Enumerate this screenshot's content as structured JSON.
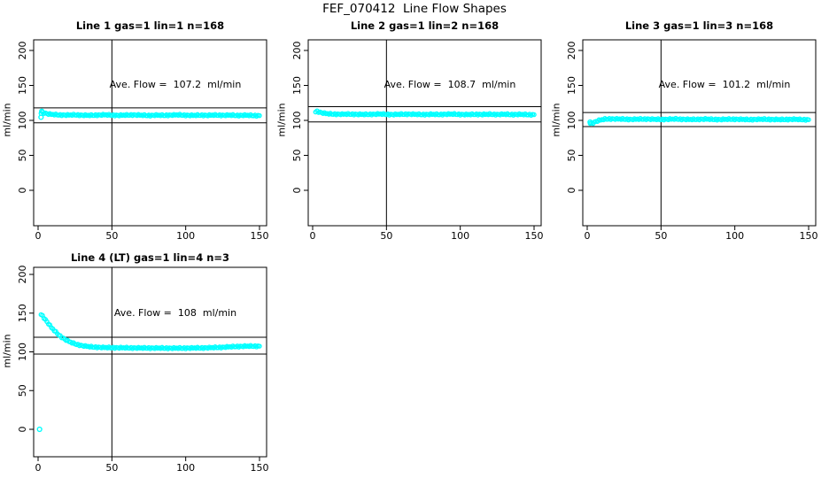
{
  "page": {
    "title": "FEF_070412  Line Flow Shapes"
  },
  "style": {
    "point_color": "#00FFFF",
    "axis_color": "#000000",
    "background": "#FFFFFF"
  },
  "axes": {
    "y_label": "ml/min",
    "x_ticks": [
      0,
      50,
      100,
      150
    ],
    "y_ticks": [
      0,
      50,
      100,
      150,
      200
    ]
  },
  "chart_data": [
    {
      "type": "scatter",
      "title": "Line 1 gas=1 lin=1 n=168",
      "annotation": "Ave. Flow =  107.2  ml/min",
      "ave_flow_ml_min": 107.2,
      "ylabel": "ml/min",
      "xlim": [
        0,
        155
      ],
      "ylim": [
        0,
        200
      ],
      "marker_vline_x": 50,
      "ref_lines_y": [
        117.9,
        96.5
      ],
      "points": [
        [
          2,
          110.5
        ],
        [
          3,
          111.5
        ],
        [
          5,
          110.2
        ],
        [
          7,
          109.2
        ],
        [
          9,
          108.6
        ],
        [
          12,
          108.1
        ],
        [
          15,
          107.8
        ],
        [
          20,
          107.6
        ],
        [
          25,
          107.9
        ],
        [
          30,
          107.4
        ],
        [
          35,
          107.2
        ],
        [
          40,
          107.6
        ],
        [
          45,
          108.0
        ],
        [
          50,
          107.5
        ],
        [
          55,
          107.2
        ],
        [
          60,
          107.6
        ],
        [
          65,
          107.9
        ],
        [
          70,
          107.4
        ],
        [
          75,
          107.1
        ],
        [
          80,
          107.5
        ],
        [
          85,
          107.2
        ],
        [
          90,
          107.6
        ],
        [
          95,
          107.9
        ],
        [
          100,
          107.4
        ],
        [
          105,
          107.1
        ],
        [
          110,
          107.5
        ],
        [
          115,
          107.2
        ],
        [
          120,
          107.6
        ],
        [
          125,
          107.3
        ],
        [
          130,
          107.5
        ],
        [
          135,
          107.1
        ],
        [
          140,
          107.4
        ],
        [
          145,
          107.0
        ],
        [
          150,
          106.8
        ]
      ],
      "outliers": [
        [
          2,
          104.5
        ],
        [
          2.5,
          113
        ]
      ]
    },
    {
      "type": "scatter",
      "title": "Line 2 gas=1 lin=2 n=168",
      "annotation": "Ave. Flow =  108.7  ml/min",
      "ave_flow_ml_min": 108.7,
      "ylabel": "ml/min",
      "xlim": [
        0,
        155
      ],
      "ylim": [
        0,
        200
      ],
      "marker_vline_x": 50,
      "ref_lines_y": [
        119.6,
        97.8
      ],
      "points": [
        [
          2,
          112.5
        ],
        [
          3,
          113.0
        ],
        [
          5,
          111.6
        ],
        [
          7,
          110.6
        ],
        [
          9,
          109.8
        ],
        [
          12,
          109.2
        ],
        [
          15,
          109.0
        ],
        [
          20,
          108.8
        ],
        [
          25,
          109.0
        ],
        [
          30,
          108.7
        ],
        [
          35,
          108.5
        ],
        [
          40,
          108.8
        ],
        [
          45,
          109.1
        ],
        [
          50,
          108.7
        ],
        [
          55,
          108.4
        ],
        [
          60,
          108.8
        ],
        [
          65,
          109.0
        ],
        [
          70,
          108.6
        ],
        [
          75,
          108.4
        ],
        [
          80,
          108.7
        ],
        [
          85,
          108.5
        ],
        [
          90,
          108.8
        ],
        [
          95,
          109.0
        ],
        [
          100,
          108.6
        ],
        [
          105,
          108.3
        ],
        [
          110,
          108.7
        ],
        [
          115,
          108.5
        ],
        [
          120,
          108.8
        ],
        [
          125,
          108.5
        ],
        [
          130,
          108.7
        ],
        [
          135,
          108.4
        ],
        [
          140,
          108.6
        ],
        [
          145,
          108.3
        ],
        [
          150,
          108.2
        ]
      ],
      "outliers": []
    },
    {
      "type": "scatter",
      "title": "Line 3 gas=1 lin=3 n=168",
      "annotation": "Ave. Flow =  101.2  ml/min",
      "ave_flow_ml_min": 101.2,
      "ylabel": "ml/min",
      "xlim": [
        0,
        155
      ],
      "ylim": [
        0,
        200
      ],
      "marker_vline_x": 50,
      "ref_lines_y": [
        111.3,
        91.1
      ],
      "points": [
        [
          2,
          96.0
        ],
        [
          3,
          95.5
        ],
        [
          4,
          96.5
        ],
        [
          5,
          97.5
        ],
        [
          6,
          98.5
        ],
        [
          8,
          100.0
        ],
        [
          10,
          101.0
        ],
        [
          12,
          101.8
        ],
        [
          15,
          102.2
        ],
        [
          20,
          102.0
        ],
        [
          25,
          101.8
        ],
        [
          30,
          101.5
        ],
        [
          35,
          101.8
        ],
        [
          40,
          102.0
        ],
        [
          45,
          101.6
        ],
        [
          50,
          101.4
        ],
        [
          55,
          101.7
        ],
        [
          60,
          102.0
        ],
        [
          65,
          101.6
        ],
        [
          70,
          101.3
        ],
        [
          75,
          101.6
        ],
        [
          80,
          101.9
        ],
        [
          85,
          101.5
        ],
        [
          90,
          101.3
        ],
        [
          95,
          101.6
        ],
        [
          100,
          101.8
        ],
        [
          105,
          101.4
        ],
        [
          110,
          101.2
        ],
        [
          115,
          101.5
        ],
        [
          120,
          101.7
        ],
        [
          125,
          101.4
        ],
        [
          130,
          101.2
        ],
        [
          135,
          101.4
        ],
        [
          140,
          101.6
        ],
        [
          145,
          101.2
        ],
        [
          150,
          101.0
        ]
      ],
      "outliers": [
        [
          2,
          97.5
        ]
      ]
    },
    {
      "type": "scatter",
      "title": "Line 4 (LT) gas=1 lin=4 n=3",
      "annotation": "Ave. Flow =  108  ml/min",
      "ave_flow_ml_min": 108,
      "ylabel": "ml/min",
      "xlim": [
        0,
        155
      ],
      "ylim": [
        0,
        200
      ],
      "marker_vline_x": 50,
      "ref_lines_y": [
        118.8,
        97.2
      ],
      "points": [
        [
          2,
          148.5
        ],
        [
          3,
          146.5
        ],
        [
          4,
          144.0
        ],
        [
          5,
          141.5
        ],
        [
          6,
          139.0
        ],
        [
          7,
          136.5
        ],
        [
          8,
          134.0
        ],
        [
          9,
          131.5
        ],
        [
          10,
          129.5
        ],
        [
          11,
          127.5
        ],
        [
          12,
          125.5
        ],
        [
          13,
          123.8
        ],
        [
          14,
          122.0
        ],
        [
          15,
          120.5
        ],
        [
          16,
          119.0
        ],
        [
          17,
          117.7
        ],
        [
          18,
          116.5
        ],
        [
          19,
          115.4
        ],
        [
          20,
          114.3
        ],
        [
          22,
          112.5
        ],
        [
          24,
          111.0
        ],
        [
          26,
          109.8
        ],
        [
          28,
          108.8
        ],
        [
          30,
          108.0
        ],
        [
          32,
          107.4
        ],
        [
          34,
          106.9
        ],
        [
          36,
          106.5
        ],
        [
          38,
          106.2
        ],
        [
          40,
          106.0
        ],
        [
          44,
          105.7
        ],
        [
          48,
          105.5
        ],
        [
          52,
          105.4
        ],
        [
          56,
          105.3
        ],
        [
          60,
          105.2
        ],
        [
          65,
          105.1
        ],
        [
          70,
          105.0
        ],
        [
          75,
          105.0
        ],
        [
          80,
          104.9
        ],
        [
          85,
          104.9
        ],
        [
          90,
          104.8
        ],
        [
          95,
          104.8
        ],
        [
          100,
          104.9
        ],
        [
          105,
          105.0
        ],
        [
          110,
          105.1
        ],
        [
          115,
          105.3
        ],
        [
          120,
          105.6
        ],
        [
          125,
          106.0
        ],
        [
          130,
          106.5
        ],
        [
          135,
          107.0
        ],
        [
          140,
          107.3
        ],
        [
          145,
          107.4
        ],
        [
          150,
          107.3
        ]
      ],
      "outliers": [
        [
          1,
          0
        ]
      ]
    }
  ]
}
